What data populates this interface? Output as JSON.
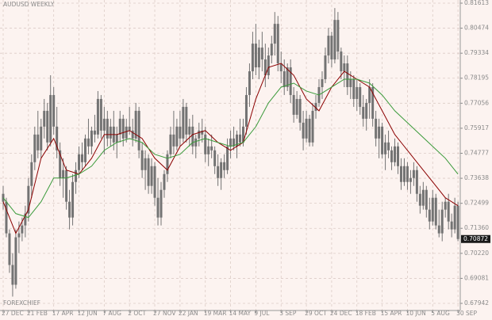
{
  "chart_data": {
    "type": "candlestick",
    "title": "AUDUSD WEEKLY",
    "watermark": "FOREXCHIEF",
    "categories": [
      "27 DEC",
      null,
      null,
      null,
      null,
      null,
      null,
      null,
      "21 FEB",
      null,
      null,
      null,
      null,
      null,
      null,
      null,
      "17 APR",
      null,
      null,
      null,
      null,
      null,
      null,
      null,
      "12 JUN",
      null,
      null,
      null,
      null,
      null,
      null,
      null,
      "7 AUG",
      null,
      null,
      null,
      null,
      null,
      null,
      null,
      "2 OCT",
      null,
      null,
      null,
      null,
      null,
      null,
      null,
      "27 NOV",
      null,
      null,
      null,
      null,
      null,
      null,
      null,
      "22 JAN",
      null,
      null,
      null,
      null,
      null,
      null,
      null,
      "19 MAR",
      null,
      null,
      null,
      null,
      null,
      null,
      null,
      "14 MAY",
      null,
      null,
      null,
      null,
      null,
      null,
      null,
      "9 JUL",
      null,
      null,
      null,
      null,
      null,
      null,
      null,
      "3 SEP",
      null,
      null,
      null,
      null,
      null,
      null,
      null,
      "29 OCT",
      null,
      null,
      null,
      null,
      null,
      null,
      null,
      "24 DEC",
      null,
      null,
      null,
      null,
      null,
      null,
      null,
      "18 FEB",
      null,
      null,
      null,
      null,
      null,
      null,
      null,
      "15 APR",
      null,
      null,
      null,
      null,
      null,
      null,
      null,
      "10 JUN",
      null,
      null,
      null,
      null,
      null,
      null,
      null,
      "5 AUG",
      null,
      null,
      null,
      null,
      null,
      null,
      null,
      "30 SEP"
    ],
    "open": [
      0.7293,
      0.7257,
      0.7113,
      0.6969,
      0.6879,
      0.7095,
      0.7113,
      0.7149,
      0.7203,
      0.7329,
      0.7437,
      0.7563,
      0.7491,
      0.7599,
      0.7671,
      0.7527,
      0.7743,
      0.7599,
      0.7491,
      0.7365,
      0.7401,
      0.7257,
      0.7185,
      0.7347,
      0.7401,
      0.7473,
      0.7437,
      0.7545,
      0.7509,
      0.7581,
      0.7563,
      0.7725,
      0.7581,
      0.7635,
      0.7545,
      0.7599,
      0.7527,
      0.7563,
      0.7635,
      0.7545,
      0.7599,
      0.7581,
      0.7545,
      0.7671,
      0.7491,
      0.7401,
      0.7455,
      0.7329,
      0.7419,
      0.7275,
      0.7185,
      0.7311,
      0.7383,
      0.7473,
      0.7563,
      0.7509,
      0.7599,
      0.7545,
      0.7689,
      0.7563,
      0.7599,
      0.7509,
      0.7545,
      0.7581,
      0.7563,
      0.7473,
      0.7509,
      0.7491,
      0.7419,
      0.7365,
      0.7437,
      0.7401,
      0.7509,
      0.7545,
      0.7509,
      0.7563,
      0.7527,
      0.7599,
      0.7743,
      0.7851,
      0.7977,
      0.7869,
      0.7959,
      0.7905,
      0.7833,
      0.7923,
      0.7977,
      0.8067,
      0.7887,
      0.7851,
      0.7779,
      0.7869,
      0.7743,
      0.7653,
      0.7725,
      0.7617,
      0.7545,
      0.7635,
      0.7527,
      0.7671,
      0.7707,
      0.7779,
      0.7815,
      0.7923,
      0.8013,
      0.7905,
      0.8085,
      0.7941,
      0.7851,
      0.7887,
      0.7779,
      0.7815,
      0.7725,
      0.7779,
      0.7689,
      0.7635,
      0.7707,
      0.7779,
      0.7635,
      0.7545,
      0.7599,
      0.7473,
      0.7527,
      0.7491,
      0.7437,
      0.7509,
      0.7419,
      0.7347,
      0.7419,
      0.7347,
      0.7365,
      0.7401,
      0.7293,
      0.7239,
      0.7311,
      0.7221,
      0.7167,
      0.7275,
      0.7149,
      0.7113,
      0.7221,
      0.7257,
      0.7167,
      0.7131,
      0.7239
    ],
    "high": [
      0.7329,
      0.7275,
      0.7131,
      0.7023,
      0.7131,
      0.7167,
      0.7185,
      0.7239,
      0.7365,
      0.7473,
      0.7599,
      0.7671,
      0.7635,
      0.7725,
      0.7707,
      0.7833,
      0.7779,
      0.7689,
      0.7527,
      0.7455,
      0.7419,
      0.7311,
      0.7383,
      0.7437,
      0.7509,
      0.7527,
      0.7563,
      0.7635,
      0.7599,
      0.7653,
      0.7761,
      0.7743,
      0.7689,
      0.7671,
      0.7635,
      0.7671,
      0.7599,
      0.7671,
      0.7653,
      0.7635,
      0.7689,
      0.7635,
      0.7707,
      0.7689,
      0.7527,
      0.7491,
      0.7473,
      0.7455,
      0.7437,
      0.7365,
      0.7347,
      0.7401,
      0.7491,
      0.7599,
      0.7671,
      0.7635,
      0.7671,
      0.7725,
      0.7707,
      0.7635,
      0.7653,
      0.7563,
      0.7617,
      0.7635,
      0.7599,
      0.7545,
      0.7563,
      0.7509,
      0.7473,
      0.7455,
      0.7473,
      0.7545,
      0.7581,
      0.7599,
      0.7581,
      0.7635,
      0.7635,
      0.7779,
      0.7887,
      0.8031,
      0.8067,
      0.7995,
      0.8031,
      0.7977,
      0.7959,
      0.8013,
      0.8121,
      0.8103,
      0.7941,
      0.7905,
      0.7887,
      0.7905,
      0.7779,
      0.7761,
      0.7743,
      0.7671,
      0.7671,
      0.7653,
      0.7707,
      0.7743,
      0.7815,
      0.7851,
      0.7959,
      0.8049,
      0.8031,
      0.8139,
      0.8121,
      0.7959,
      0.7923,
      0.7923,
      0.7851,
      0.7833,
      0.7815,
      0.7797,
      0.7743,
      0.7725,
      0.7815,
      0.7797,
      0.7671,
      0.7635,
      0.7617,
      0.7563,
      0.7581,
      0.7509,
      0.7545,
      0.7527,
      0.7455,
      0.7455,
      0.7437,
      0.7401,
      0.7437,
      0.7419,
      0.7329,
      0.7347,
      0.7329,
      0.7275,
      0.7311,
      0.7293,
      0.7221,
      0.7257,
      0.7275,
      0.7293,
      0.7203,
      0.7275,
      0.7257
    ],
    "low": [
      0.7221,
      0.7095,
      0.6933,
      0.6825,
      0.6861,
      0.7023,
      0.7077,
      0.7095,
      0.7167,
      0.7275,
      0.7401,
      0.7455,
      0.7455,
      0.7545,
      0.7491,
      0.7509,
      0.7563,
      0.7455,
      0.7329,
      0.7275,
      0.7221,
      0.7131,
      0.7149,
      0.7293,
      0.7365,
      0.7401,
      0.7419,
      0.7473,
      0.7473,
      0.7527,
      0.7545,
      0.7545,
      0.7473,
      0.7509,
      0.7509,
      0.7491,
      0.7455,
      0.7527,
      0.7509,
      0.7527,
      0.7563,
      0.7509,
      0.7527,
      0.7455,
      0.7365,
      0.7311,
      0.7293,
      0.7293,
      0.7239,
      0.7149,
      0.7149,
      0.7275,
      0.7347,
      0.7455,
      0.7473,
      0.7491,
      0.7509,
      0.7527,
      0.7527,
      0.7509,
      0.7473,
      0.7455,
      0.7509,
      0.7527,
      0.7437,
      0.7419,
      0.7455,
      0.7383,
      0.7329,
      0.7311,
      0.7365,
      0.7383,
      0.7455,
      0.7491,
      0.7455,
      0.7509,
      0.7509,
      0.7563,
      0.7689,
      0.7815,
      0.7833,
      0.7815,
      0.7851,
      0.7779,
      0.7815,
      0.7887,
      0.7923,
      0.7851,
      0.7797,
      0.7743,
      0.7761,
      0.7707,
      0.7617,
      0.7635,
      0.7581,
      0.7491,
      0.7527,
      0.7509,
      0.7509,
      0.7635,
      0.7689,
      0.7725,
      0.7797,
      0.7887,
      0.7869,
      0.7887,
      0.7905,
      0.7815,
      0.7779,
      0.7743,
      0.7725,
      0.7689,
      0.7671,
      0.7653,
      0.7599,
      0.7581,
      0.7635,
      0.7599,
      0.7509,
      0.7455,
      0.7455,
      0.7401,
      0.7455,
      0.7401,
      0.7419,
      0.7383,
      0.7311,
      0.7329,
      0.7311,
      0.7293,
      0.7329,
      0.7257,
      0.7203,
      0.7221,
      0.7185,
      0.7131,
      0.7149,
      0.7131,
      0.7095,
      0.7077,
      0.7185,
      0.7131,
      0.7095,
      0.7113,
      0.7077
    ],
    "close": [
      0.7257,
      0.7113,
      0.6969,
      0.6879,
      0.7095,
      0.7113,
      0.7149,
      0.7203,
      0.7329,
      0.7437,
      0.7563,
      0.7491,
      0.7599,
      0.7671,
      0.7527,
      0.7743,
      0.7599,
      0.7491,
      0.7365,
      0.7401,
      0.7257,
      0.7185,
      0.7347,
      0.7401,
      0.7473,
      0.7437,
      0.7545,
      0.7509,
      0.7581,
      0.7563,
      0.7725,
      0.7581,
      0.7635,
      0.7545,
      0.7599,
      0.7527,
      0.7563,
      0.7635,
      0.7545,
      0.7599,
      0.7581,
      0.7545,
      0.7671,
      0.7491,
      0.7401,
      0.7455,
      0.7329,
      0.7419,
      0.7275,
      0.7185,
      0.7311,
      0.7383,
      0.7473,
      0.7563,
      0.7509,
      0.7599,
      0.7545,
      0.7689,
      0.7563,
      0.7599,
      0.7509,
      0.7545,
      0.7581,
      0.7563,
      0.7473,
      0.7509,
      0.7491,
      0.7419,
      0.7365,
      0.7437,
      0.7401,
      0.7509,
      0.7545,
      0.7509,
      0.7563,
      0.7527,
      0.7599,
      0.7743,
      0.7851,
      0.7977,
      0.7869,
      0.7959,
      0.7905,
      0.7833,
      0.7923,
      0.7977,
      0.8067,
      0.7887,
      0.7851,
      0.7779,
      0.7869,
      0.7743,
      0.7653,
      0.7725,
      0.7617,
      0.7545,
      0.7635,
      0.7527,
      0.7671,
      0.7707,
      0.7779,
      0.7815,
      0.7923,
      0.8013,
      0.7905,
      0.8085,
      0.7941,
      0.7851,
      0.7887,
      0.7779,
      0.7815,
      0.7725,
      0.7779,
      0.7689,
      0.7635,
      0.7707,
      0.7779,
      0.7635,
      0.7545,
      0.7599,
      0.7473,
      0.7527,
      0.7491,
      0.7437,
      0.7509,
      0.7419,
      0.7347,
      0.7419,
      0.7347,
      0.7365,
      0.7401,
      0.7293,
      0.7239,
      0.7311,
      0.7221,
      0.7167,
      0.7275,
      0.7149,
      0.7113,
      0.7221,
      0.7257,
      0.7167,
      0.7131,
      0.7239,
      0.70872
    ],
    "candle_color": "#737373",
    "lines": [
      {
        "color": "#8b0000",
        "x": [
          0,
          4,
          8,
          12,
          16,
          20,
          24,
          28,
          32,
          36,
          40,
          44,
          48,
          52,
          56,
          60,
          64,
          68,
          72,
          76,
          80,
          84,
          88,
          92,
          96,
          100,
          104,
          108,
          112,
          116,
          120,
          124,
          128,
          132,
          136,
          140,
          144
        ],
        "values": [
          0.7257,
          0.7113,
          0.7221,
          0.7455,
          0.7545,
          0.7401,
          0.7383,
          0.7455,
          0.7563,
          0.7563,
          0.7581,
          0.7545,
          0.7455,
          0.7401,
          0.7509,
          0.7563,
          0.7581,
          0.7527,
          0.7491,
          0.7527,
          0.7725,
          0.7869,
          0.7887,
          0.7833,
          0.7725,
          0.7671,
          0.7779,
          0.7851,
          0.7815,
          0.7779,
          0.7671,
          0.7563,
          0.7491,
          0.7419,
          0.7347,
          0.7275,
          0.7239
        ]
      },
      {
        "color": "#3a9a3a",
        "x": [
          0,
          4,
          8,
          12,
          16,
          20,
          24,
          28,
          32,
          36,
          40,
          44,
          48,
          52,
          56,
          60,
          64,
          68,
          72,
          76,
          80,
          84,
          88,
          92,
          96,
          100,
          104,
          108,
          112,
          116,
          120,
          124,
          128,
          132,
          136,
          140,
          144
        ],
        "values": [
          0.7275,
          0.7203,
          0.7185,
          0.7257,
          0.7365,
          0.7365,
          0.7383,
          0.7419,
          0.7491,
          0.7527,
          0.7545,
          0.7527,
          0.7473,
          0.7455,
          0.7473,
          0.7527,
          0.7545,
          0.7527,
          0.7509,
          0.7527,
          0.7599,
          0.7707,
          0.7779,
          0.7797,
          0.7761,
          0.7743,
          0.7779,
          0.7815,
          0.7815,
          0.7797,
          0.7743,
          0.7671,
          0.7617,
          0.7563,
          0.7509,
          0.7455,
          0.7383
        ]
      }
    ],
    "last_price": 0.70872,
    "ylim": [
      0.67617,
      0.81757
    ],
    "yticks": [
      0.81613,
      0.80474,
      0.79334,
      0.78195,
      0.77056,
      0.75917,
      0.74777,
      0.73638,
      0.72499,
      {
        "value": 0.7136,
        "label": "0.71360"
      },
      {
        "value": 0.7022,
        "label": "0.70220"
      },
      0.69081,
      0.67942
    ],
    "grid": true
  }
}
